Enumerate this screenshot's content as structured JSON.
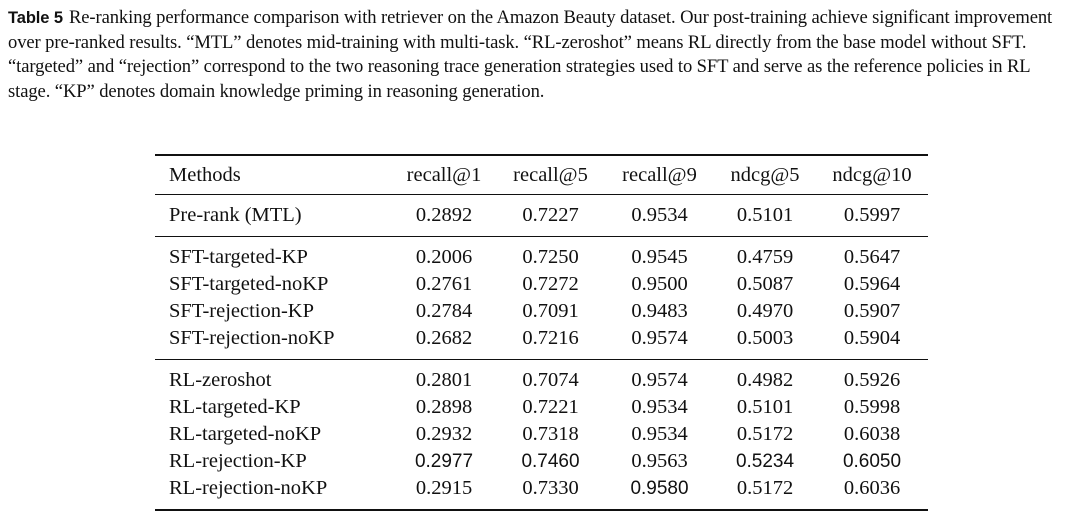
{
  "caption": {
    "label": "Table 5",
    "text": "Re-ranking performance comparison with retriever on the Amazon Beauty dataset. Our post-training achieve significant improvement over pre-ranked results. “MTL” denotes mid-training with multi-task. “RL-zeroshot” means RL directly from the base model without SFT. “targeted” and “rejection” correspond to the two reasoning trace generation strategies used to SFT and serve as the reference policies in RL stage. “KP” denotes domain knowledge priming in reasoning generation."
  },
  "table": {
    "headers": [
      "Methods",
      "recall@1",
      "recall@5",
      "recall@9",
      "ndcg@5",
      "ndcg@10"
    ],
    "rows": [
      {
        "method": "Pre-rank (MTL)",
        "values": [
          "0.2892",
          "0.7227",
          "0.9534",
          "0.5101",
          "0.5997"
        ],
        "bold": [
          false,
          false,
          false,
          false,
          false
        ]
      },
      {
        "method": "SFT-targeted-KP",
        "values": [
          "0.2006",
          "0.7250",
          "0.9545",
          "0.4759",
          "0.5647"
        ],
        "bold": [
          false,
          false,
          false,
          false,
          false
        ]
      },
      {
        "method": "SFT-targeted-noKP",
        "values": [
          "0.2761",
          "0.7272",
          "0.9500",
          "0.5087",
          "0.5964"
        ],
        "bold": [
          false,
          false,
          false,
          false,
          false
        ]
      },
      {
        "method": "SFT-rejection-KP",
        "values": [
          "0.2784",
          "0.7091",
          "0.9483",
          "0.4970",
          "0.5907"
        ],
        "bold": [
          false,
          false,
          false,
          false,
          false
        ]
      },
      {
        "method": "SFT-rejection-noKP",
        "values": [
          "0.2682",
          "0.7216",
          "0.9574",
          "0.5003",
          "0.5904"
        ],
        "bold": [
          false,
          false,
          false,
          false,
          false
        ]
      },
      {
        "method": "RL-zeroshot",
        "values": [
          "0.2801",
          "0.7074",
          "0.9574",
          "0.4982",
          "0.5926"
        ],
        "bold": [
          false,
          false,
          false,
          false,
          false
        ]
      },
      {
        "method": "RL-targeted-KP",
        "values": [
          "0.2898",
          "0.7221",
          "0.9534",
          "0.5101",
          "0.5998"
        ],
        "bold": [
          false,
          false,
          false,
          false,
          false
        ]
      },
      {
        "method": "RL-targeted-noKP",
        "values": [
          "0.2932",
          "0.7318",
          "0.9534",
          "0.5172",
          "0.6038"
        ],
        "bold": [
          false,
          false,
          false,
          false,
          false
        ]
      },
      {
        "method": "RL-rejection-KP",
        "values": [
          "0.2977",
          "0.7460",
          "0.9563",
          "0.5234",
          "0.6050"
        ],
        "bold": [
          true,
          true,
          false,
          true,
          true
        ]
      },
      {
        "method": "RL-rejection-noKP",
        "values": [
          "0.2915",
          "0.7330",
          "0.9580",
          "0.5172",
          "0.6036"
        ],
        "bold": [
          false,
          false,
          true,
          false,
          false
        ]
      }
    ]
  }
}
